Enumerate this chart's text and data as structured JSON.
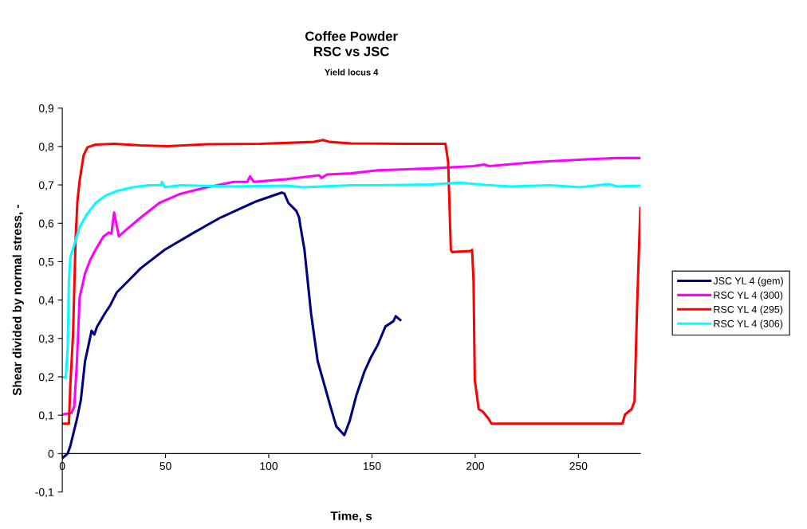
{
  "chart_data": {
    "type": "line",
    "title": "Coffee Powder\nRSC vs JSC",
    "subtitle": "Yield locus 4",
    "xlabel": "Time, s",
    "ylabel": "Shear divided by normal stress, -",
    "xlim": [
      0,
      280
    ],
    "xticks": [
      0,
      50,
      100,
      150,
      200,
      250
    ],
    "ylim": [
      -0.1,
      0.9
    ],
    "yticks": [
      {
        "value": -0.1,
        "label": "-0,1"
      },
      0,
      {
        "value": 0.1,
        "label": "0,1"
      },
      {
        "value": 0.2,
        "label": "0,2"
      },
      {
        "value": 0.3,
        "label": "0,3"
      },
      {
        "value": 0.4,
        "label": "0,4"
      },
      {
        "value": 0.5,
        "label": "0,5"
      },
      {
        "value": 0.6,
        "label": "0,6"
      },
      {
        "value": 0.7,
        "label": "0,7"
      },
      {
        "value": 0.8,
        "label": "0,8"
      },
      {
        "value": 0.9,
        "label": "0,9"
      }
    ],
    "grid": false,
    "legend": "right",
    "marker": "none",
    "line_style": "solid",
    "series": [
      {
        "name": "JSC YL 4 (gem)",
        "color": "#000080",
        "x": [
          0,
          2.6,
          3.9,
          7.1,
          9,
          11,
          14.2,
          15.5,
          16.8,
          20.6,
          23.2,
          24.5,
          26.4,
          31.6,
          38,
          49.6,
          63.8,
          76.7,
          93.4,
          106.3,
          107.6,
          109.5,
          113.4,
          114.7,
          115.3,
          117.3,
          120.5,
          123.7,
          129.5,
          132.7,
          136.6,
          139.2,
          142.4,
          146.3,
          149.5,
          152.7,
          156.5,
          160.4,
          161.5,
          163.7
        ],
        "values": [
          -0.012,
          0,
          0.02,
          0.09,
          0.14,
          0.24,
          0.32,
          0.31,
          0.33,
          0.365,
          0.386,
          0.4,
          0.42,
          0.448,
          0.483,
          0.531,
          0.576,
          0.615,
          0.656,
          0.68,
          0.677,
          0.653,
          0.632,
          0.615,
          0.594,
          0.531,
          0.365,
          0.241,
          0.13,
          0.071,
          0.048,
          0.085,
          0.151,
          0.213,
          0.251,
          0.282,
          0.331,
          0.345,
          0.358,
          0.348
        ]
      },
      {
        "name": "RSC YL 4 (300)",
        "color": "#ff00ff",
        "x": [
          0,
          4.5,
          5.8,
          7.1,
          8.4,
          11,
          13.5,
          16.1,
          20,
          22.6,
          23.8,
          25.1,
          27.4,
          30.3,
          38,
          47,
          57.3,
          70.2,
          83.1,
          89.6,
          90.9,
          92.8,
          108.9,
          124.4,
          125.6,
          128.2,
          139.8,
          152.7,
          178.5,
          199.2,
          204.3,
          206.8,
          230,
          255.8,
          268.7,
          280
        ],
        "values": [
          0.102,
          0.106,
          0.123,
          0.241,
          0.407,
          0.469,
          0.504,
          0.531,
          0.566,
          0.576,
          0.573,
          0.628,
          0.566,
          0.58,
          0.615,
          0.653,
          0.677,
          0.694,
          0.708,
          0.708,
          0.722,
          0.708,
          0.715,
          0.725,
          0.718,
          0.727,
          0.73,
          0.738,
          0.743,
          0.749,
          0.753,
          0.749,
          0.76,
          0.767,
          0.77,
          0.77
        ]
      },
      {
        "name": "RSC YL 4 (295)",
        "color": "#ff0000",
        "x": [
          0,
          3.2,
          3.9,
          5.2,
          6.4,
          7.3,
          8.4,
          10.3,
          12.2,
          16.1,
          25.1,
          38,
          50.9,
          70.2,
          96,
          121.8,
          126.3,
          129.5,
          139.8,
          165.6,
          185.6,
          186.9,
          187.5,
          188.2,
          188.8,
          197.9,
          198.5,
          199.2,
          199.8,
          201.7,
          203.7,
          206.3,
          207.9,
          271.3,
          272.6,
          275.8,
          277.2,
          278.4,
          279.4,
          280
        ],
        "values": [
          0.078,
          0.078,
          0.179,
          0.31,
          0.552,
          0.656,
          0.711,
          0.777,
          0.798,
          0.805,
          0.807,
          0.803,
          0.801,
          0.806,
          0.807,
          0.812,
          0.817,
          0.812,
          0.808,
          0.807,
          0.807,
          0.76,
          0.656,
          0.531,
          0.525,
          0.528,
          0.531,
          0.449,
          0.192,
          0.116,
          0.109,
          0.092,
          0.078,
          0.078,
          0.102,
          0.116,
          0.137,
          0.379,
          0.545,
          0.64
        ]
      },
      {
        "name": "RSC YL 4 (306)",
        "color": "#00ffff",
        "x": [
          0,
          1.7,
          2.6,
          3.2,
          3.9,
          5.8,
          8.4,
          11.6,
          16.1,
          21.3,
          26.4,
          34.1,
          41.9,
          47.7,
          48.3,
          49.6,
          57.3,
          83.1,
          108.9,
          116.6,
          139.8,
          152.7,
          178.5,
          192.6,
          204.3,
          217.2,
          236.5,
          250.7,
          264.8,
          268.7,
          280
        ],
        "values": [
          0.199,
          0.199,
          0.275,
          0.448,
          0.511,
          0.545,
          0.59,
          0.621,
          0.653,
          0.673,
          0.684,
          0.694,
          0.699,
          0.699,
          0.708,
          0.694,
          0.699,
          0.696,
          0.698,
          0.694,
          0.699,
          0.699,
          0.701,
          0.706,
          0.7,
          0.696,
          0.699,
          0.694,
          0.702,
          0.696,
          0.698
        ]
      }
    ]
  }
}
